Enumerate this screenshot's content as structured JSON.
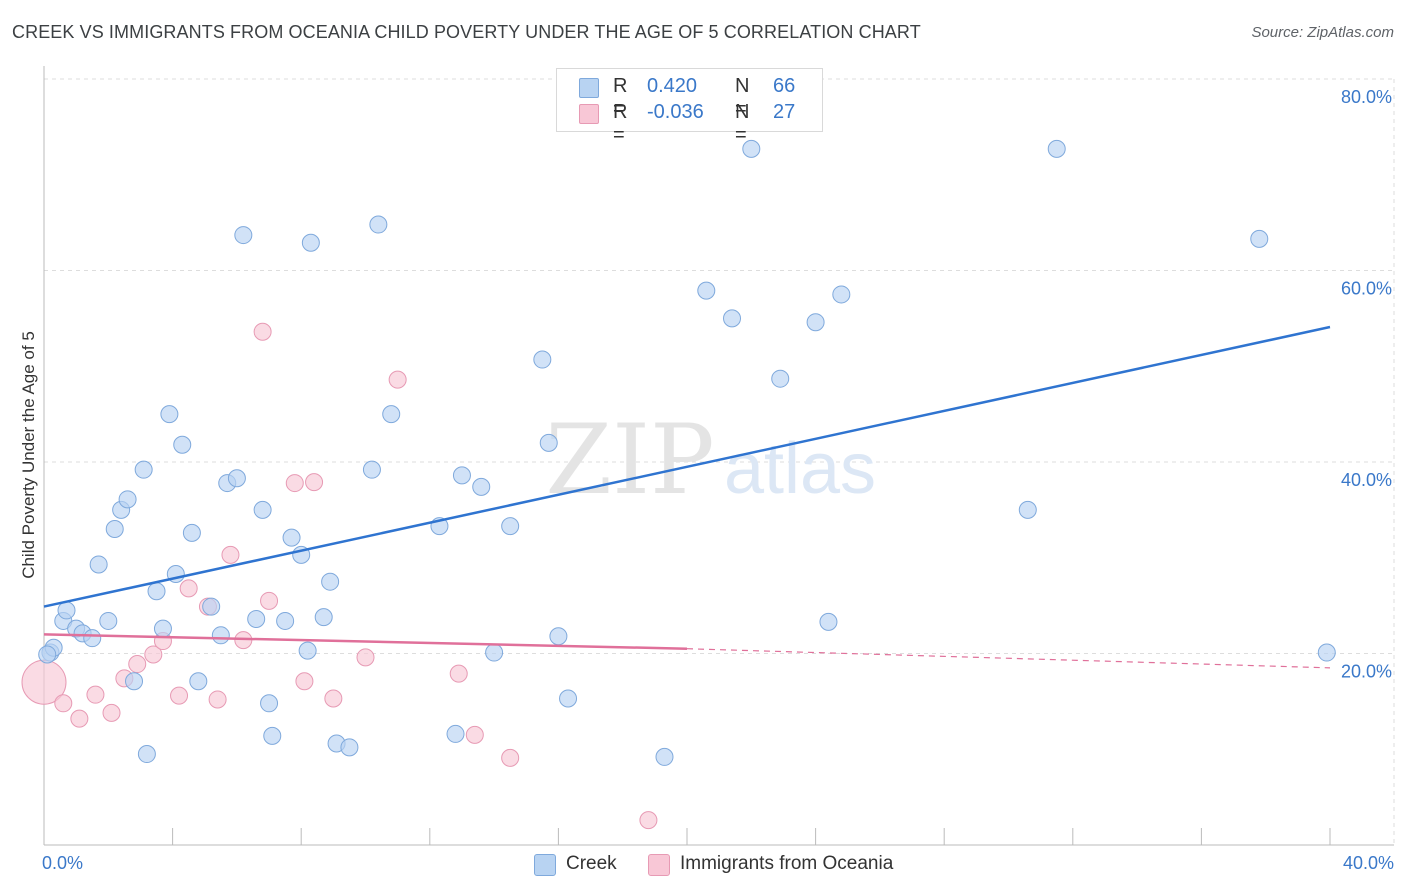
{
  "header": {
    "title": "CREEK VS IMMIGRANTS FROM OCEANIA CHILD POVERTY UNDER THE AGE OF 5 CORRELATION CHART",
    "source": "Source: ZipAtlas.com"
  },
  "watermark": {
    "zip": "ZIP",
    "atlas": "atlas"
  },
  "legend_top": {
    "rows": [
      {
        "r_label": "R =",
        "r_value": "0.420",
        "n_label": "N =",
        "n_value": "66"
      },
      {
        "r_label": "R =",
        "r_value": "-0.036",
        "n_label": "N =",
        "n_value": "27"
      }
    ]
  },
  "legend_bottom": {
    "items": [
      "Creek",
      "Immigrants from Oceania"
    ]
  },
  "colors": {
    "creek_fill": "#b8d3f2",
    "creek_stroke": "#7fa9dc",
    "creek_line": "#2f74d0",
    "oceania_fill": "#f8c7d6",
    "oceania_stroke": "#e79ab4",
    "oceania_line": "#e0709a",
    "axis_text": "#3a78c9",
    "grid": "#dddddd"
  },
  "chart_data": {
    "type": "scatter",
    "title": "CREEK VS IMMIGRANTS FROM OCEANIA CHILD POVERTY UNDER THE AGE OF 5 CORRELATION CHART",
    "xlabel": "",
    "ylabel": "Child Poverty Under the Age of 5",
    "xlim": [
      0,
      40
    ],
    "ylim": [
      0,
      80
    ],
    "x_tick_labels": [
      "0.0%",
      "40.0%"
    ],
    "y_ticks": [
      20,
      40,
      60,
      80
    ],
    "y_tick_labels": [
      "20.0%",
      "40.0%",
      "60.0%",
      "80.0%"
    ],
    "grid": true,
    "legend_position": "top-center",
    "series": [
      {
        "name": "Creek",
        "points": [
          [
            0.2,
            20.1
          ],
          [
            0.3,
            20.6
          ],
          [
            0.6,
            23.4
          ],
          [
            0.7,
            24.5
          ],
          [
            1.0,
            22.6
          ],
          [
            1.2,
            22.1
          ],
          [
            1.5,
            21.6
          ],
          [
            1.7,
            29.3
          ],
          [
            2.0,
            23.4
          ],
          [
            2.2,
            33.0
          ],
          [
            2.4,
            35.0
          ],
          [
            2.6,
            36.1
          ],
          [
            2.8,
            17.1
          ],
          [
            3.1,
            39.2
          ],
          [
            3.2,
            9.5
          ],
          [
            3.5,
            26.5
          ],
          [
            3.7,
            22.6
          ],
          [
            3.9,
            45.0
          ],
          [
            4.1,
            28.3
          ],
          [
            4.3,
            41.8
          ],
          [
            4.6,
            32.6
          ],
          [
            4.8,
            17.1
          ],
          [
            5.2,
            24.9
          ],
          [
            5.5,
            21.9
          ],
          [
            5.7,
            37.8
          ],
          [
            6.0,
            38.3
          ],
          [
            6.2,
            63.7
          ],
          [
            6.6,
            23.6
          ],
          [
            6.8,
            35.0
          ],
          [
            7.0,
            14.8
          ],
          [
            7.1,
            11.4
          ],
          [
            7.5,
            23.4
          ],
          [
            7.7,
            32.1
          ],
          [
            8.0,
            30.3
          ],
          [
            8.2,
            20.3
          ],
          [
            8.3,
            62.9
          ],
          [
            8.7,
            23.8
          ],
          [
            8.9,
            27.5
          ],
          [
            9.1,
            10.6
          ],
          [
            9.5,
            10.2
          ],
          [
            10.2,
            39.2
          ],
          [
            10.4,
            64.8
          ],
          [
            10.8,
            45.0
          ],
          [
            12.3,
            33.3
          ],
          [
            12.8,
            11.6
          ],
          [
            13.0,
            38.6
          ],
          [
            13.6,
            37.4
          ],
          [
            14.0,
            20.1
          ],
          [
            14.5,
            33.3
          ],
          [
            15.5,
            50.7
          ],
          [
            15.7,
            42.0
          ],
          [
            16.0,
            21.8
          ],
          [
            16.3,
            15.3
          ],
          [
            19.3,
            9.2
          ],
          [
            20.6,
            57.9
          ],
          [
            21.4,
            55.0
          ],
          [
            22.0,
            72.7
          ],
          [
            22.9,
            48.7
          ],
          [
            24.0,
            54.6
          ],
          [
            24.4,
            23.3
          ],
          [
            24.8,
            57.5
          ],
          [
            30.6,
            35.0
          ],
          [
            31.5,
            72.7
          ],
          [
            37.8,
            63.3
          ],
          [
            39.9,
            20.1
          ],
          [
            0.1,
            19.9
          ]
        ]
      },
      {
        "name": "Immigrants from Oceania",
        "points": [
          [
            0.0,
            17.0
          ],
          [
            0.6,
            14.8
          ],
          [
            1.1,
            13.2
          ],
          [
            1.6,
            15.7
          ],
          [
            2.1,
            13.8
          ],
          [
            2.5,
            17.4
          ],
          [
            2.9,
            18.9
          ],
          [
            3.4,
            19.9
          ],
          [
            3.7,
            21.3
          ],
          [
            4.2,
            15.6
          ],
          [
            4.5,
            26.8
          ],
          [
            5.1,
            24.9
          ],
          [
            5.4,
            15.2
          ],
          [
            5.8,
            30.3
          ],
          [
            6.2,
            21.4
          ],
          [
            6.8,
            53.6
          ],
          [
            7.0,
            25.5
          ],
          [
            7.8,
            37.8
          ],
          [
            8.1,
            17.1
          ],
          [
            8.4,
            37.9
          ],
          [
            9.0,
            15.3
          ],
          [
            10.0,
            19.6
          ],
          [
            11.0,
            48.6
          ],
          [
            12.9,
            17.9
          ],
          [
            13.4,
            11.5
          ],
          [
            14.5,
            9.1
          ],
          [
            18.8,
            2.6
          ]
        ]
      }
    ],
    "trend_lines": [
      {
        "name": "Creek",
        "x": [
          0,
          40
        ],
        "y": [
          24.9,
          54.1
        ]
      },
      {
        "name": "Immigrants from Oceania",
        "x": [
          0,
          20
        ],
        "y": [
          22.0,
          20.5
        ],
        "dashed_extension_to": [
          40,
          18.5
        ]
      }
    ]
  }
}
